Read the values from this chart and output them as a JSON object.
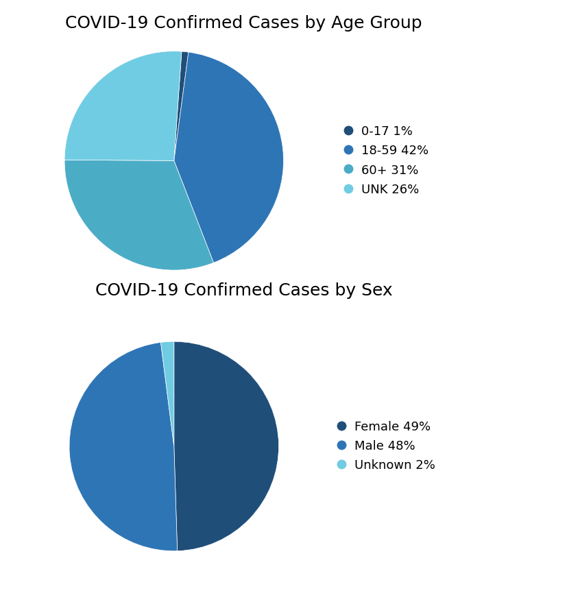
{
  "age_title": "COVID-19 Confirmed Cases by Age Group",
  "age_labels": [
    "0-17 1%",
    "18-59 42%",
    "60+ 31%",
    "UNK 26%"
  ],
  "age_values": [
    1,
    42,
    31,
    26
  ],
  "age_colors": [
    "#1f4e79",
    "#2e75b6",
    "#4bacc6",
    "#70cce2"
  ],
  "age_startangle": 86,
  "sex_title": "COVID-19 Confirmed Cases by Sex",
  "sex_labels": [
    "Female 49%",
    "Male 48%",
    "Unknown 2%"
  ],
  "sex_values": [
    49,
    48,
    2
  ],
  "sex_colors": [
    "#1f4e79",
    "#2e75b6",
    "#70cce2"
  ],
  "sex_startangle": 90,
  "title_fontsize": 18,
  "legend_fontsize": 13,
  "background_color": "#ffffff"
}
